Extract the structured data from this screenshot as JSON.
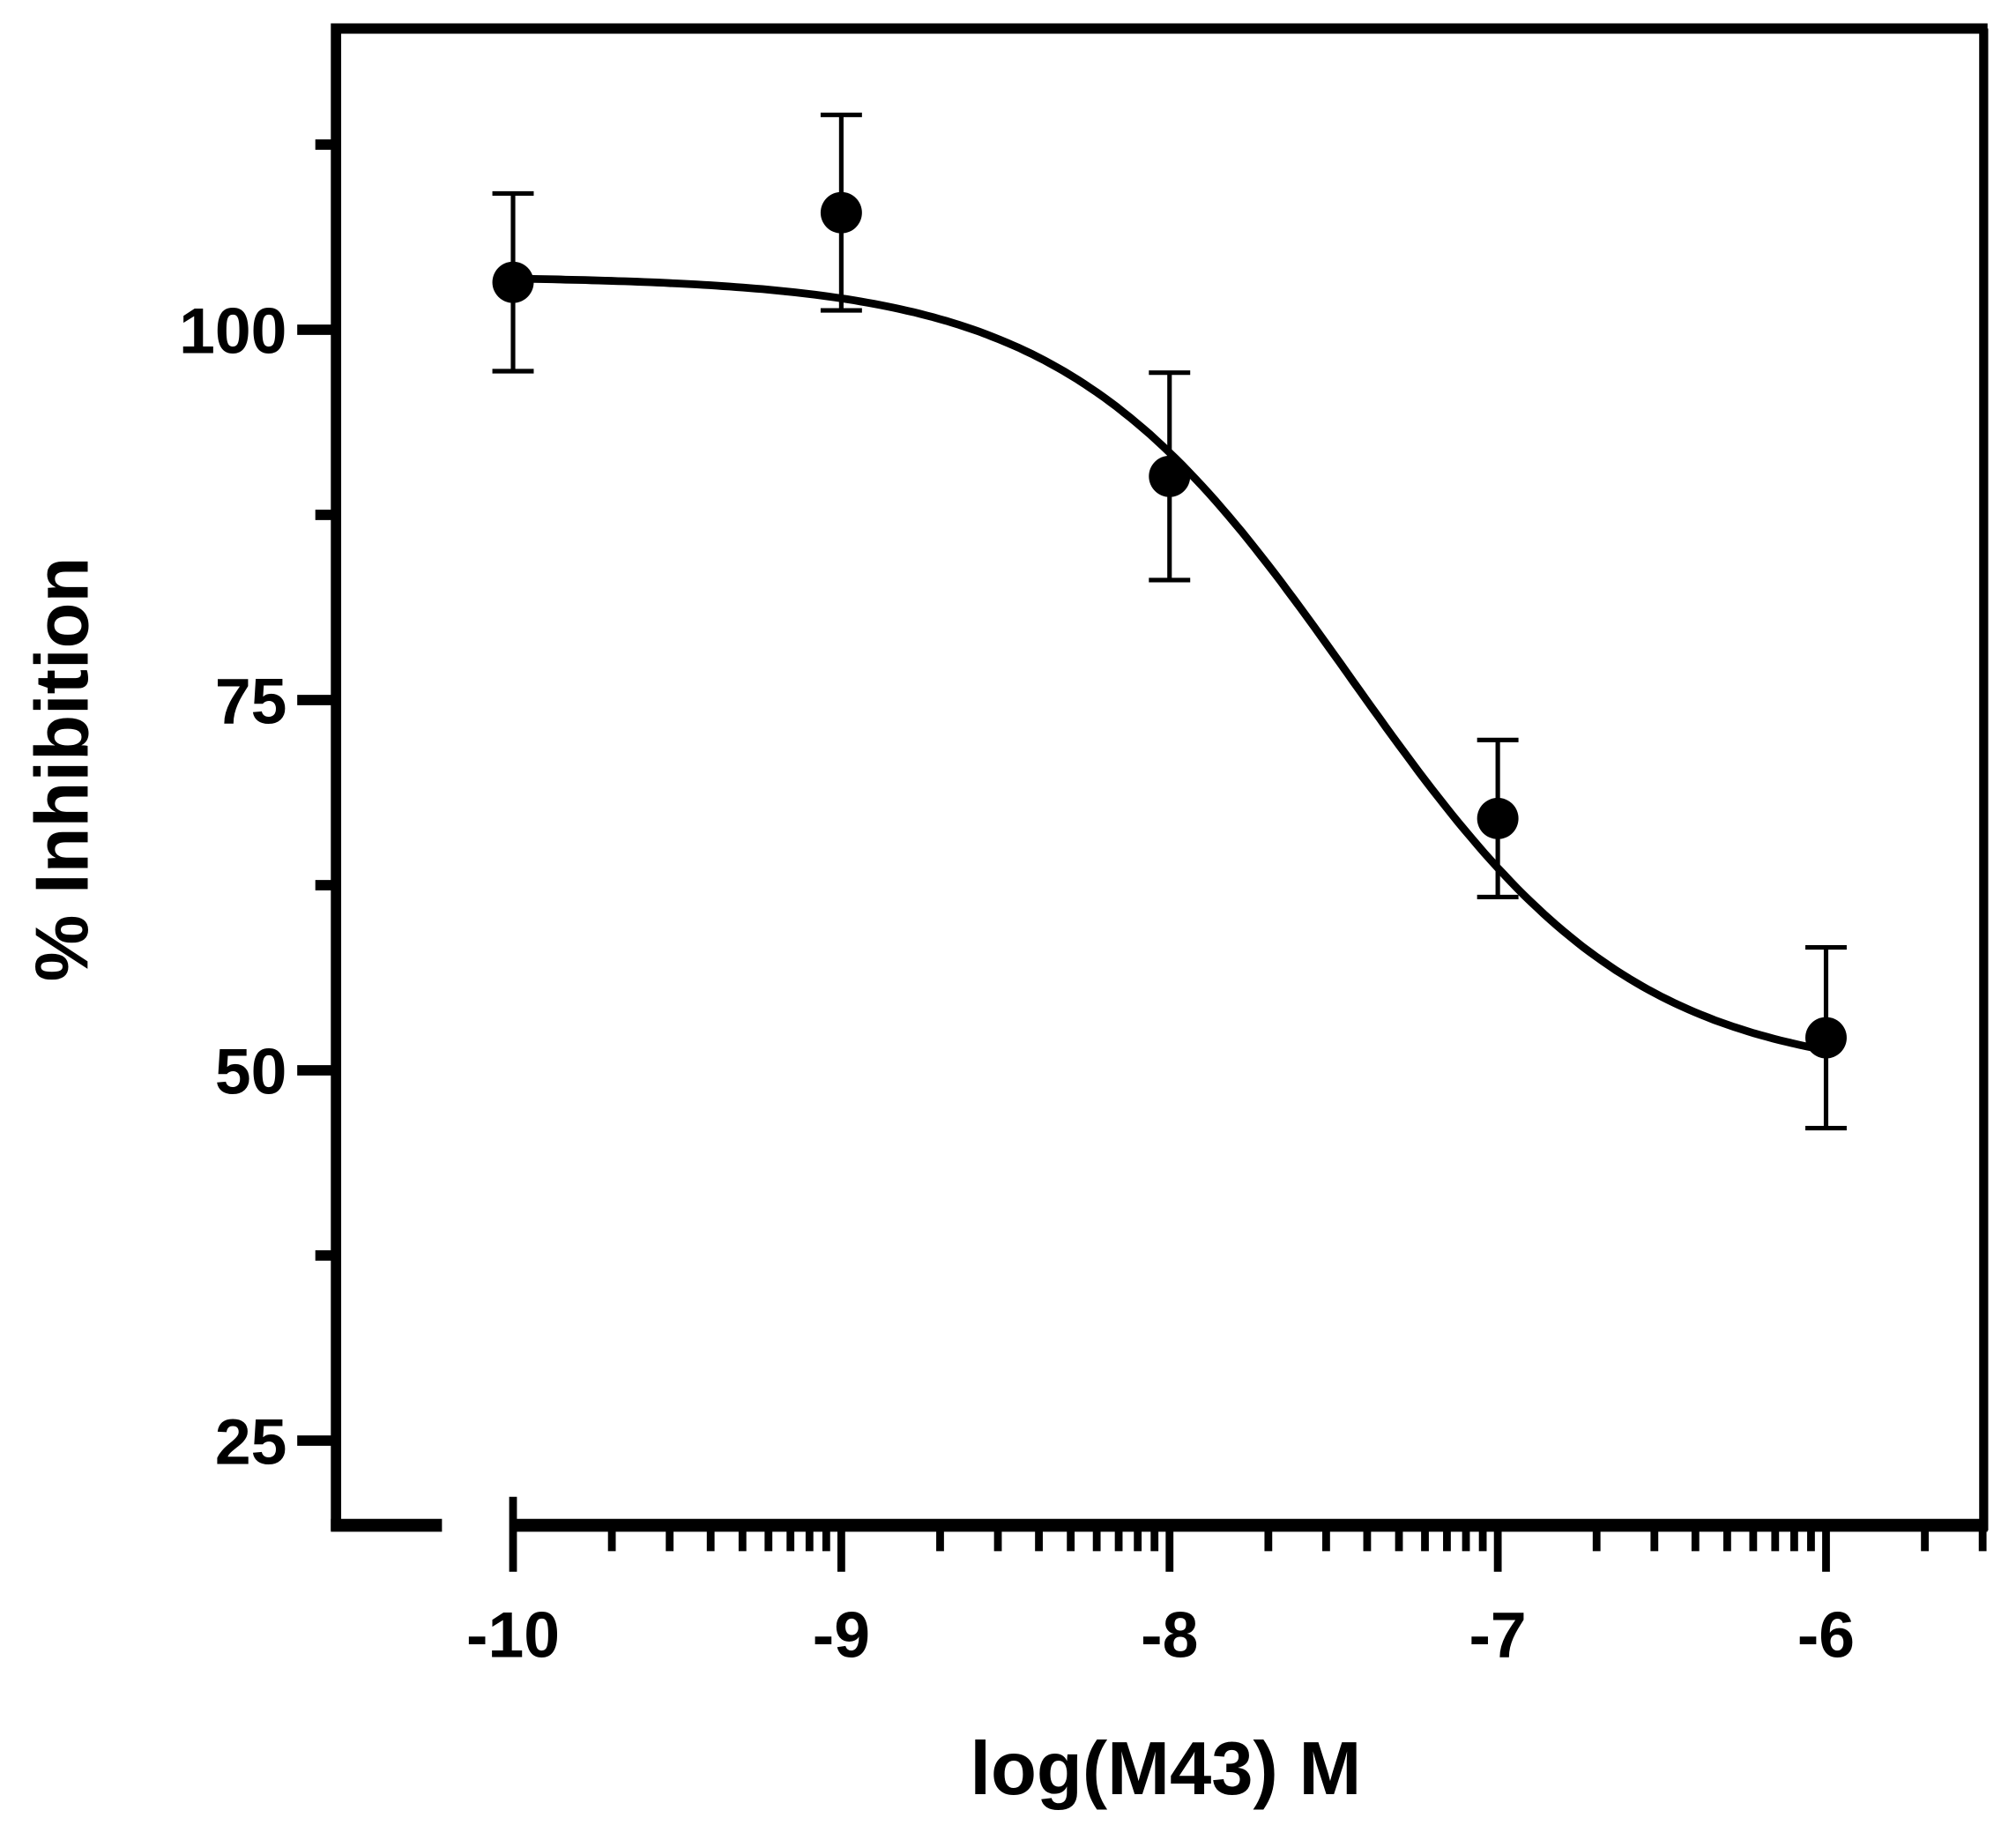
{
  "chart_data": {
    "type": "scatter",
    "title": "",
    "xlabel": "log(M43) M",
    "ylabel": "% Inhibition",
    "xlim": [
      -10.55,
      -5.5
    ],
    "ylim": [
      20,
      124
    ],
    "x_ticks": [
      -10,
      -9,
      -8,
      -7,
      -6
    ],
    "x_tick_labels": [
      "-10",
      "-9",
      "-8",
      "-7",
      "-6"
    ],
    "y_ticks": [
      25,
      50,
      75,
      100
    ],
    "y_tick_labels": [
      "25",
      "50",
      "75",
      "100"
    ],
    "y_minor_ticks": [
      37.5,
      62.5,
      87.5,
      112.5
    ],
    "grid": false,
    "legend": null,
    "series": [
      {
        "name": "M43",
        "marker": "filled-circle",
        "color": "#000000",
        "x": [
          -10,
          -9,
          -8,
          -7,
          -6
        ],
        "y": [
          103.2,
          107.9,
          90.1,
          67.0,
          52.2
        ],
        "error": [
          6.0,
          6.6,
          7.0,
          5.3,
          6.1
        ]
      }
    ],
    "fit_curve": {
      "type": "sigmoidal-dose-response",
      "top": 103.6,
      "bottom": 49.5,
      "log_ic50": -7.45,
      "hill_slope": -1.0,
      "x_range": [
        -10,
        -6
      ]
    }
  }
}
